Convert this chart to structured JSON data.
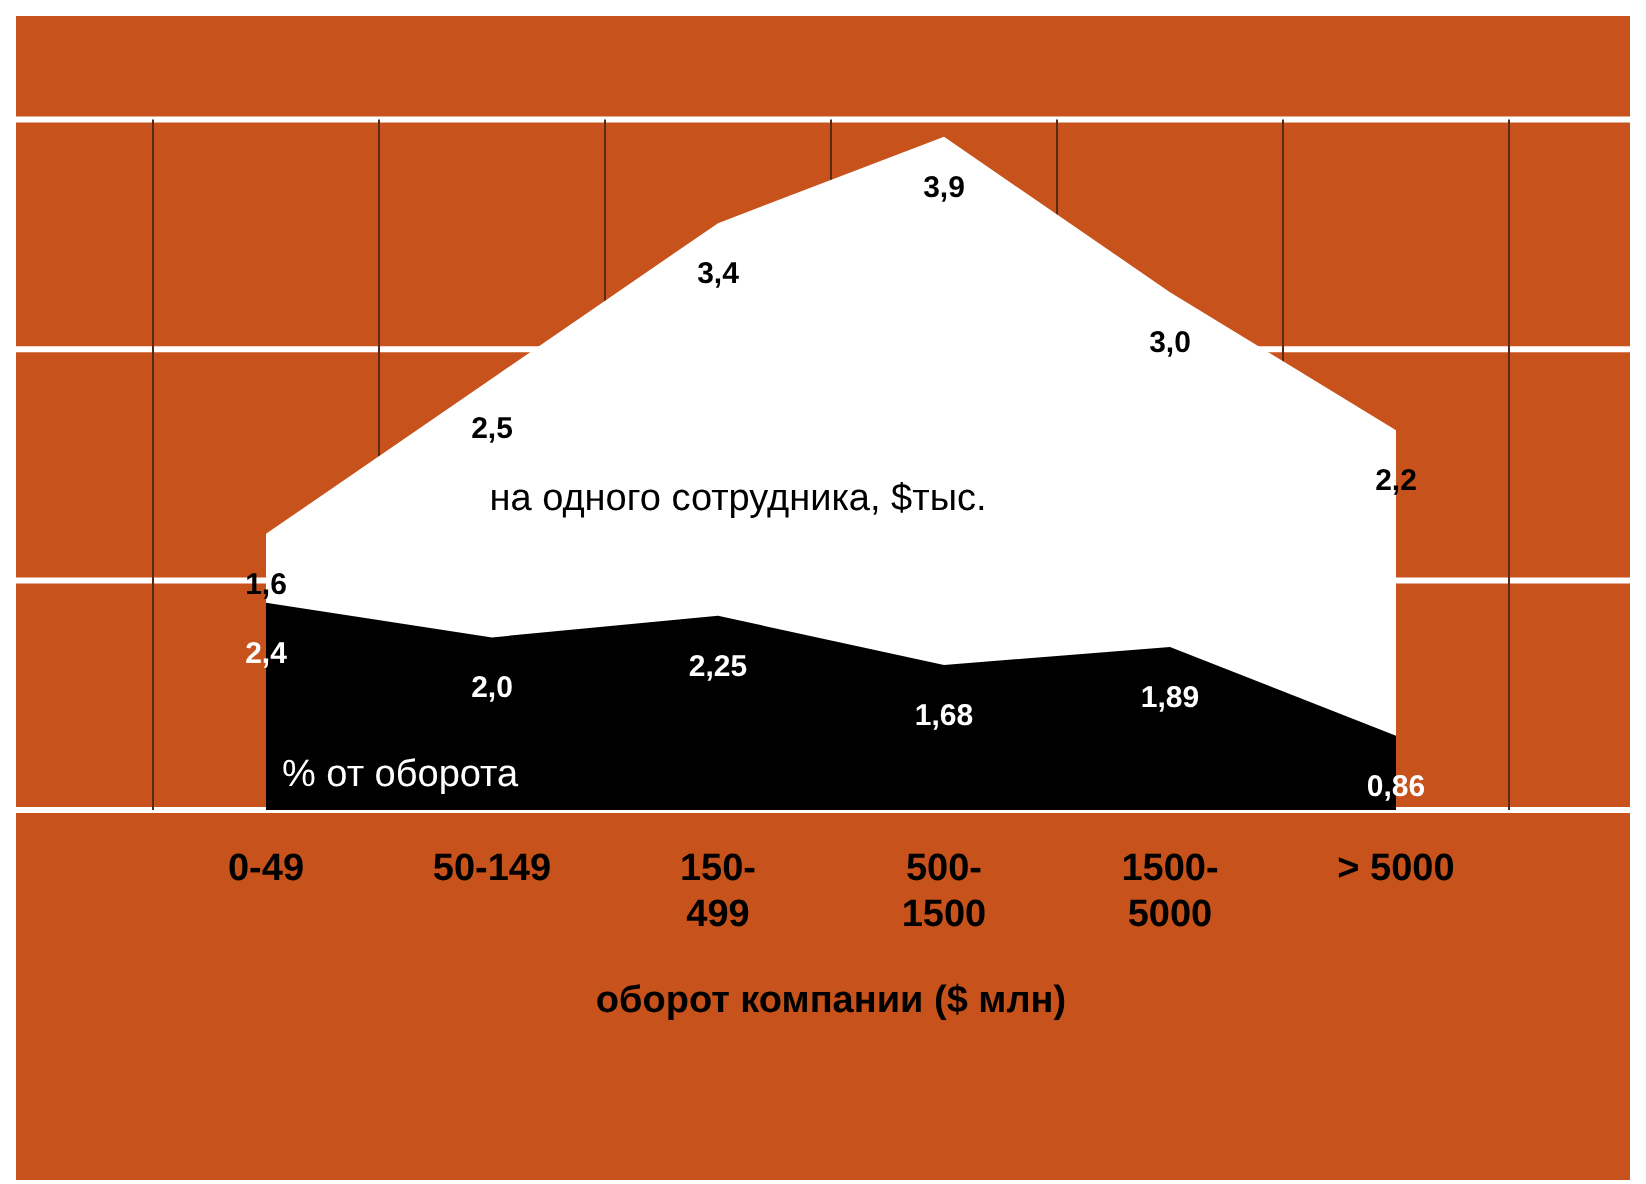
{
  "chart_data": {
    "type": "area",
    "xlabel": "оборот компании ($ млн)",
    "categories": [
      "0-49",
      "50-149",
      "150-499",
      "500-1500",
      "1500-5000",
      "> 5000"
    ],
    "series": [
      {
        "name": "на одного сотрудника, $тыс.",
        "color": "#ffffff",
        "values": [
          1.6,
          2.5,
          3.4,
          3.9,
          3.0,
          2.2
        ],
        "value_labels": [
          "1,6",
          "2,5",
          "3,4",
          "3,9",
          "3,0",
          "2,2"
        ]
      },
      {
        "name": "% от оборота",
        "color": "#000000",
        "axis": "y2",
        "values": [
          2.4,
          2.0,
          2.25,
          1.68,
          1.89,
          0.86
        ],
        "value_labels": [
          "2,4",
          "2,0",
          "2,25",
          "1,68",
          "1,89",
          "0,86"
        ]
      }
    ],
    "ylim": [
      0,
      4.6
    ],
    "yticks": [
      {
        "value": 0,
        "label": null
      },
      {
        "value": 1.33,
        "label": null
      },
      {
        "value": 2.67,
        "label": null
      },
      {
        "value": 4,
        "label": null
      }
    ],
    "y2lim": [
      0,
      9.2
    ],
    "tick_labels": "x",
    "grid": true
  }
}
